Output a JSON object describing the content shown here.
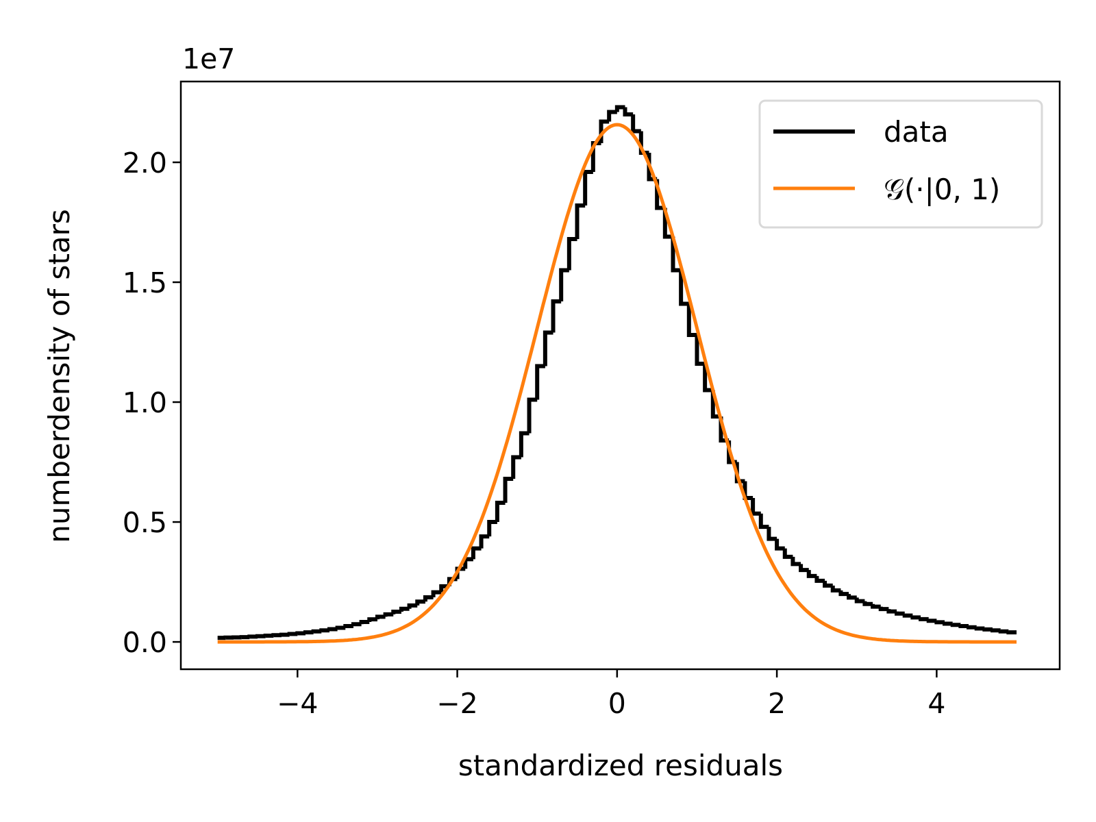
{
  "chart_data": {
    "type": "line",
    "title": "",
    "xlabel": "standardized residuals",
    "ylabel": "numberdensity of stars",
    "y_offset_label": "1e7",
    "xlim": [
      -5.46,
      5.54
    ],
    "ylim": [
      -0.114,
      2.337
    ],
    "xticks": [
      -4,
      -2,
      0,
      2,
      4
    ],
    "xtick_labels": [
      "−4",
      "−2",
      "0",
      "2",
      "4"
    ],
    "yticks": [
      0.0,
      0.5,
      1.0,
      1.5,
      2.0
    ],
    "ytick_labels": [
      "0.0",
      "0.5",
      "1.0",
      "1.5",
      "2.0"
    ],
    "grid": false,
    "legend": {
      "placement": "top-right",
      "entries": [
        "data",
        "𝒢(·|0, 1)"
      ]
    },
    "series": [
      {
        "name": "data",
        "kind": "step-histogram",
        "color": "#000000",
        "bin_start": -5.0,
        "bin_width": 0.1,
        "values": [
          0.017,
          0.018,
          0.019,
          0.02,
          0.022,
          0.024,
          0.026,
          0.028,
          0.03,
          0.033,
          0.036,
          0.04,
          0.044,
          0.048,
          0.053,
          0.059,
          0.066,
          0.074,
          0.083,
          0.094,
          0.105,
          0.115,
          0.126,
          0.138,
          0.152,
          0.168,
          0.186,
          0.207,
          0.232,
          0.262,
          0.305,
          0.345,
          0.39,
          0.44,
          0.5,
          0.58,
          0.68,
          0.77,
          0.87,
          1.01,
          1.15,
          1.29,
          1.42,
          1.55,
          1.68,
          1.82,
          1.96,
          2.08,
          2.17,
          2.21,
          2.23,
          2.2,
          2.13,
          2.04,
          1.93,
          1.81,
          1.69,
          1.55,
          1.41,
          1.28,
          1.16,
          1.05,
          0.94,
          0.84,
          0.75,
          0.67,
          0.6,
          0.535,
          0.48,
          0.43,
          0.39,
          0.355,
          0.325,
          0.3,
          0.275,
          0.255,
          0.235,
          0.215,
          0.2,
          0.185,
          0.17,
          0.158,
          0.147,
          0.137,
          0.127,
          0.118,
          0.11,
          0.102,
          0.095,
          0.088,
          0.082,
          0.076,
          0.071,
          0.066,
          0.061,
          0.056,
          0.052,
          0.048,
          0.044,
          0.04
        ]
      },
      {
        "name": "𝒢(·|0, 1)",
        "kind": "gaussian",
        "color": "#ff7f0e",
        "mean": 0,
        "sigma": 1,
        "peak": 2.157,
        "x_range": [
          -5,
          5
        ]
      }
    ]
  }
}
